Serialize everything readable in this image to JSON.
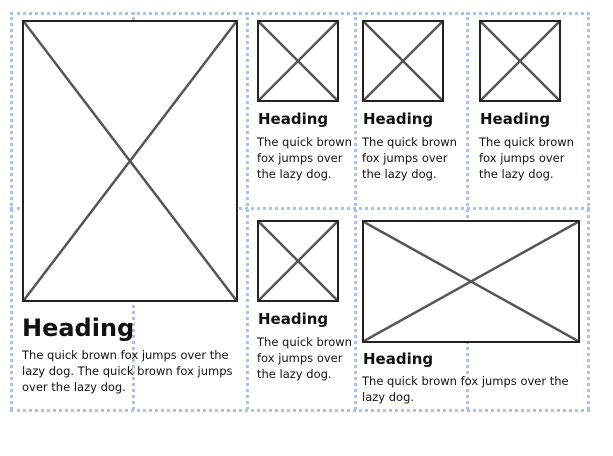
{
  "colors": {
    "guide": "#a9c4ec",
    "frame": "#222222",
    "cross": "#555555",
    "text": "#111111"
  },
  "placeholder_icon": "image-placeholder-cross",
  "cards": [
    {
      "heading": "Heading",
      "body": "The quick brown fox jumps over the lazy dog. The quick brown fox jumps over the lazy dog."
    },
    {
      "heading": "Heading",
      "body": "The quick brown fox jumps over the lazy dog."
    },
    {
      "heading": "Heading",
      "body": "The quick brown fox jumps over the lazy dog."
    },
    {
      "heading": "Heading",
      "body": "The quick brown fox jumps over the lazy dog."
    },
    {
      "heading": "Heading",
      "body": "The quick brown fox jumps over the lazy dog."
    },
    {
      "heading": "Heading",
      "body": "The quick brown fox jumps over the lazy dog."
    }
  ]
}
